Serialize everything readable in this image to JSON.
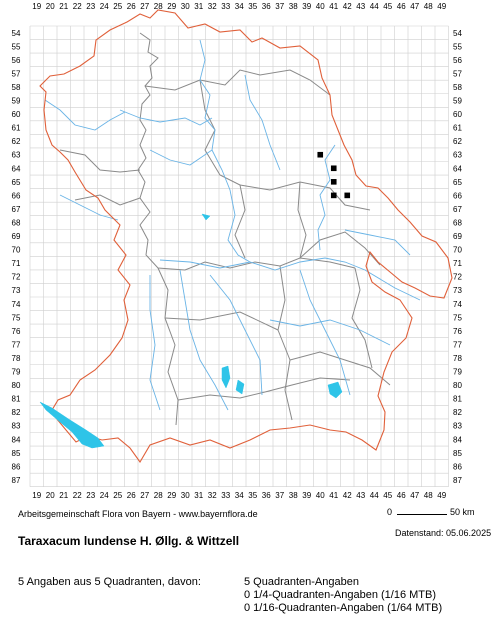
{
  "map": {
    "x_labels": [
      "19",
      "20",
      "21",
      "22",
      "23",
      "24",
      "25",
      "26",
      "27",
      "28",
      "29",
      "30",
      "31",
      "32",
      "33",
      "34",
      "35",
      "36",
      "37",
      "38",
      "39",
      "40",
      "41",
      "42",
      "43",
      "44",
      "45",
      "46",
      "47",
      "48",
      "49"
    ],
    "y_labels": [
      "54",
      "55",
      "56",
      "57",
      "58",
      "59",
      "60",
      "61",
      "62",
      "63",
      "64",
      "65",
      "66",
      "67",
      "68",
      "69",
      "70",
      "71",
      "72",
      "73",
      "74",
      "75",
      "76",
      "77",
      "78",
      "79",
      "80",
      "81",
      "82",
      "83",
      "84",
      "85",
      "86",
      "87"
    ],
    "colors": {
      "grid": "#cfcfcf",
      "state_border": "#e0603a",
      "district_border": "#8a8a8a",
      "rivers": "#6ab4e6",
      "lakes": "#2ec4e8",
      "occurrence": "#000000"
    },
    "occurrences": [
      {
        "col": "40",
        "row": "63"
      },
      {
        "col": "41",
        "row": "64"
      },
      {
        "col": "41",
        "row": "65"
      },
      {
        "col": "41",
        "row": "66"
      },
      {
        "col": "42",
        "row": "66"
      }
    ]
  },
  "footer": {
    "credit": "Arbeitsgemeinschaft Flora von Bayern - www.bayernflora.de",
    "scale_zero": "0",
    "scale_label": "50 km",
    "date": "Datenstand: 05.06.2025",
    "title": "Taraxacum lundense H. Øllg. & Wittzell",
    "summary": "5 Angaben aus 5 Quadranten, davon:",
    "stats": [
      "5 Quadranten-Angaben",
      "0 1/4-Quadranten-Angaben (1/16 MTB)",
      "0 1/16-Quadranten-Angaben (1/64 MTB)"
    ]
  }
}
